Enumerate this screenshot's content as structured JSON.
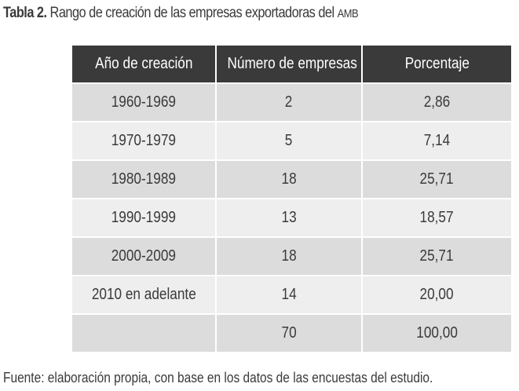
{
  "caption": {
    "label": "Tabla 2.",
    "title": "Rango de creación de las empresas exportadoras del",
    "title_suffix": "AMB"
  },
  "table": {
    "headers": [
      "Año de creación",
      "Número de empresas",
      "Porcentaje"
    ],
    "rows": [
      [
        "1960-1969",
        "2",
        "2,86"
      ],
      [
        "1970-1979",
        "5",
        "7,14"
      ],
      [
        "1980-1989",
        "18",
        "25,71"
      ],
      [
        "1990-1999",
        "13",
        "18,57"
      ],
      [
        "2000-2009",
        "18",
        "25,71"
      ],
      [
        "2010 en adelante",
        "14",
        "20,00"
      ],
      [
        "",
        "70",
        "100,00"
      ]
    ]
  },
  "source": "Fuente: elaboración propia, con base en los datos de las encuestas del estudio.",
  "colors": {
    "header_bg": "#3a3a3a",
    "row_dark": "#dcdcdc",
    "row_light": "#eeeeee",
    "text": "#3a3a3a"
  }
}
